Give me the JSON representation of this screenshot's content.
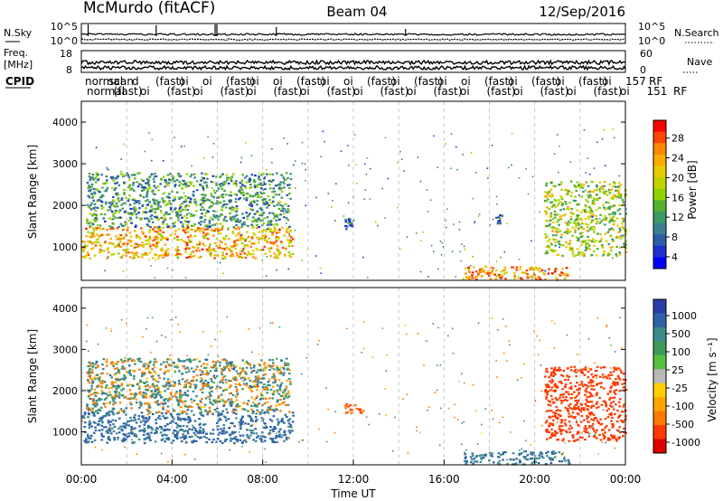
{
  "header": {
    "station": "McMurdo (fitACF)",
    "beam": "Beam 04",
    "date": "12/Sep/2016"
  },
  "top_panels": {
    "nsky_label": "N.Sky",
    "nsky_ticks": [
      "10^5",
      "10^0"
    ],
    "nsearch_label": "N.Search",
    "nsearch_ticks": [
      "10^5",
      "10^0"
    ],
    "freq_label_1": "Freq.",
    "freq_label_2": "[MHz]",
    "freq_ticks": [
      "18",
      "8"
    ],
    "nave_label": "Nave",
    "nave_ticks": [
      "60",
      "0"
    ],
    "cpid_label": "CPID",
    "cpid_rows": [
      [
        "normal",
        "scan",
        "d",
        "(fast)",
        "oi",
        "oi",
        "(fast)",
        "oi",
        "oi",
        "(fast)",
        "oi",
        "oi",
        "(fast)",
        "oi",
        "(fast)",
        "oi",
        "oi",
        "(fast)",
        "oi",
        "(fast)",
        "oi",
        "(fast)",
        "oi",
        "157",
        "RF"
      ],
      [
        "normal",
        "(fast)",
        "oi",
        "(fast)",
        "oi",
        "(fast)",
        "oi",
        "(fast)",
        "oi",
        "(fast)",
        "oi",
        "(fast)",
        "oi",
        "(fast)",
        "oi",
        "(fast)",
        "oi",
        "(fast)",
        "oi",
        "(fast)",
        "oi",
        "151",
        "RF"
      ]
    ]
  },
  "colorbars": {
    "power": {
      "label": "Power [dB]",
      "ticks": [
        "28",
        "24",
        "20",
        "16",
        "12",
        "8",
        "4"
      ],
      "colors": [
        "#ff0000",
        "#ff4400",
        "#ff8800",
        "#ffaa00",
        "#e6cc00",
        "#c0d400",
        "#8fd400",
        "#55b030",
        "#3c9a64",
        "#3a8090",
        "#2e5ca8",
        "#1e2ed0",
        "#0000ff"
      ]
    },
    "velocity": {
      "label": "Velocity [m s⁻¹]",
      "ticks": [
        "1000",
        "500",
        "100",
        "25",
        "-25",
        "-100",
        "-500",
        "-1000"
      ],
      "colors": [
        "#2a3ea8",
        "#2f63a8",
        "#3d8a8a",
        "#3d9a5a",
        "#55c040",
        "#b8b8b8",
        "#ffd000",
        "#ffa500",
        "#ff7a00",
        "#ff3a00",
        "#e00000"
      ]
    }
  },
  "axes": {
    "ylabel": "Slant Range [km]",
    "xlabel": "Time UT",
    "yticks": [
      "1000",
      "2000",
      "3000",
      "4000"
    ],
    "xticks": [
      "00:00",
      "04:00",
      "08:00",
      "12:00",
      "16:00",
      "20:00",
      "00:00"
    ]
  },
  "chart_data": [
    {
      "type": "heatmap",
      "title": "",
      "quantity": "Power [dB]",
      "xlabel": "",
      "ylabel": "Slant Range [km]",
      "xlim": [
        0,
        24
      ],
      "ylim": [
        200,
        4500
      ],
      "yticks": [
        1000,
        2000,
        3000,
        4000
      ],
      "color_range": [
        0,
        30
      ],
      "echo_regions": [
        {
          "t": [
            0.0,
            9.3
          ],
          "range_km": [
            750,
            1500
          ],
          "power_db": 22
        },
        {
          "t": [
            0.2,
            9.2
          ],
          "range_km": [
            1500,
            2800
          ],
          "power_db": 10
        },
        {
          "t": [
            11.6,
            12.4
          ],
          "range_km": [
            1450,
            1700
          ],
          "power_db": 6
        },
        {
          "t": [
            16.8,
            21.5
          ],
          "range_km": [
            230,
            550
          ],
          "power_db": 24
        },
        {
          "t": [
            18.2,
            18.6
          ],
          "range_km": [
            1500,
            1800
          ],
          "power_db": 5
        },
        {
          "t": [
            20.4,
            24.0
          ],
          "range_km": [
            800,
            2600
          ],
          "power_db": 16
        }
      ]
    },
    {
      "type": "heatmap",
      "title": "",
      "quantity": "Velocity [m s⁻¹]",
      "xlabel": "Time UT",
      "ylabel": "Slant Range [km]",
      "xlim": [
        0,
        24
      ],
      "ylim": [
        200,
        4500
      ],
      "yticks": [
        1000,
        2000,
        3000,
        4000
      ],
      "color_levels": [
        1000,
        500,
        100,
        25,
        -25,
        -100,
        -500,
        -1000
      ],
      "echo_regions": [
        {
          "t": [
            0.0,
            9.3
          ],
          "range_km": [
            750,
            1500
          ],
          "velocity_ms": 200
        },
        {
          "t": [
            0.2,
            9.2
          ],
          "range_km": [
            1500,
            2800
          ],
          "velocity_ms": 40
        },
        {
          "t": [
            11.6,
            12.4
          ],
          "range_km": [
            1450,
            1700
          ],
          "velocity_ms": -150
        },
        {
          "t": [
            16.8,
            21.5
          ],
          "range_km": [
            230,
            550
          ],
          "velocity_ms": 150
        },
        {
          "t": [
            20.4,
            24.0
          ],
          "range_km": [
            800,
            2600
          ],
          "velocity_ms": -300
        }
      ]
    }
  ]
}
